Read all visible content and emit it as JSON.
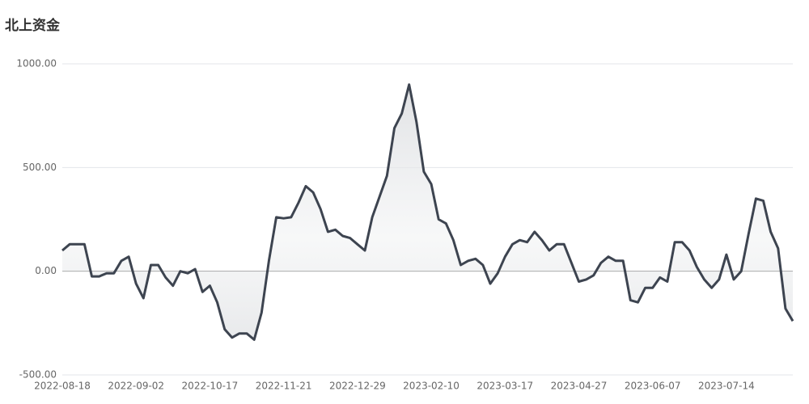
{
  "chart_data": {
    "type": "line",
    "title": "北上资金",
    "categories": [
      "2022-08-18",
      null,
      null,
      null,
      null,
      null,
      null,
      null,
      null,
      null,
      "2022-09-02",
      null,
      null,
      null,
      null,
      null,
      null,
      null,
      null,
      null,
      "2022-10-17",
      null,
      null,
      null,
      null,
      null,
      null,
      null,
      null,
      null,
      "2022-11-21",
      null,
      null,
      null,
      null,
      null,
      null,
      null,
      null,
      null,
      "2022-12-29",
      null,
      null,
      null,
      null,
      null,
      null,
      null,
      null,
      null,
      "2023-02-10",
      null,
      null,
      null,
      null,
      null,
      null,
      null,
      null,
      null,
      "2023-03-17",
      null,
      null,
      null,
      null,
      null,
      null,
      null,
      null,
      null,
      "2023-04-27",
      null,
      null,
      null,
      null,
      null,
      null,
      null,
      null,
      null,
      "2023-06-07",
      null,
      null,
      null,
      null,
      null,
      null,
      null,
      null,
      null,
      "2023-07-14",
      null,
      null,
      null,
      null,
      null,
      null,
      null,
      null,
      null
    ],
    "series": [
      {
        "color": "#3d4450",
        "values": [
          100,
          130,
          130,
          130,
          -25,
          -25,
          -10,
          -10,
          50,
          70,
          -60,
          -130,
          30,
          30,
          -30,
          -70,
          0,
          -10,
          10,
          -100,
          -70,
          -150,
          -280,
          -320,
          -300,
          -300,
          -330,
          -200,
          50,
          260,
          255,
          260,
          330,
          410,
          380,
          300,
          190,
          200,
          170,
          160,
          130,
          100,
          260,
          360,
          460,
          690,
          760,
          900,
          720,
          480,
          420,
          250,
          230,
          150,
          30,
          50,
          60,
          30,
          -60,
          -10,
          70,
          130,
          150,
          140,
          190,
          150,
          100,
          130,
          130,
          40,
          -50,
          -40,
          -20,
          40,
          70,
          50,
          50,
          -140,
          -150,
          -80,
          -80,
          -30,
          -50,
          140,
          140,
          100,
          20,
          -40,
          -80,
          -40,
          80,
          -40,
          0,
          180,
          350,
          340,
          190,
          110,
          -180,
          -240
        ]
      }
    ],
    "ylim": [
      -500,
      1000
    ],
    "yticks": [
      {
        "value": -500,
        "label": "-500.00"
      },
      {
        "value": 0,
        "label": "0.00"
      },
      {
        "value": 500,
        "label": "500.00"
      },
      {
        "value": 1000,
        "label": "1000.00"
      }
    ],
    "grid": true
  }
}
